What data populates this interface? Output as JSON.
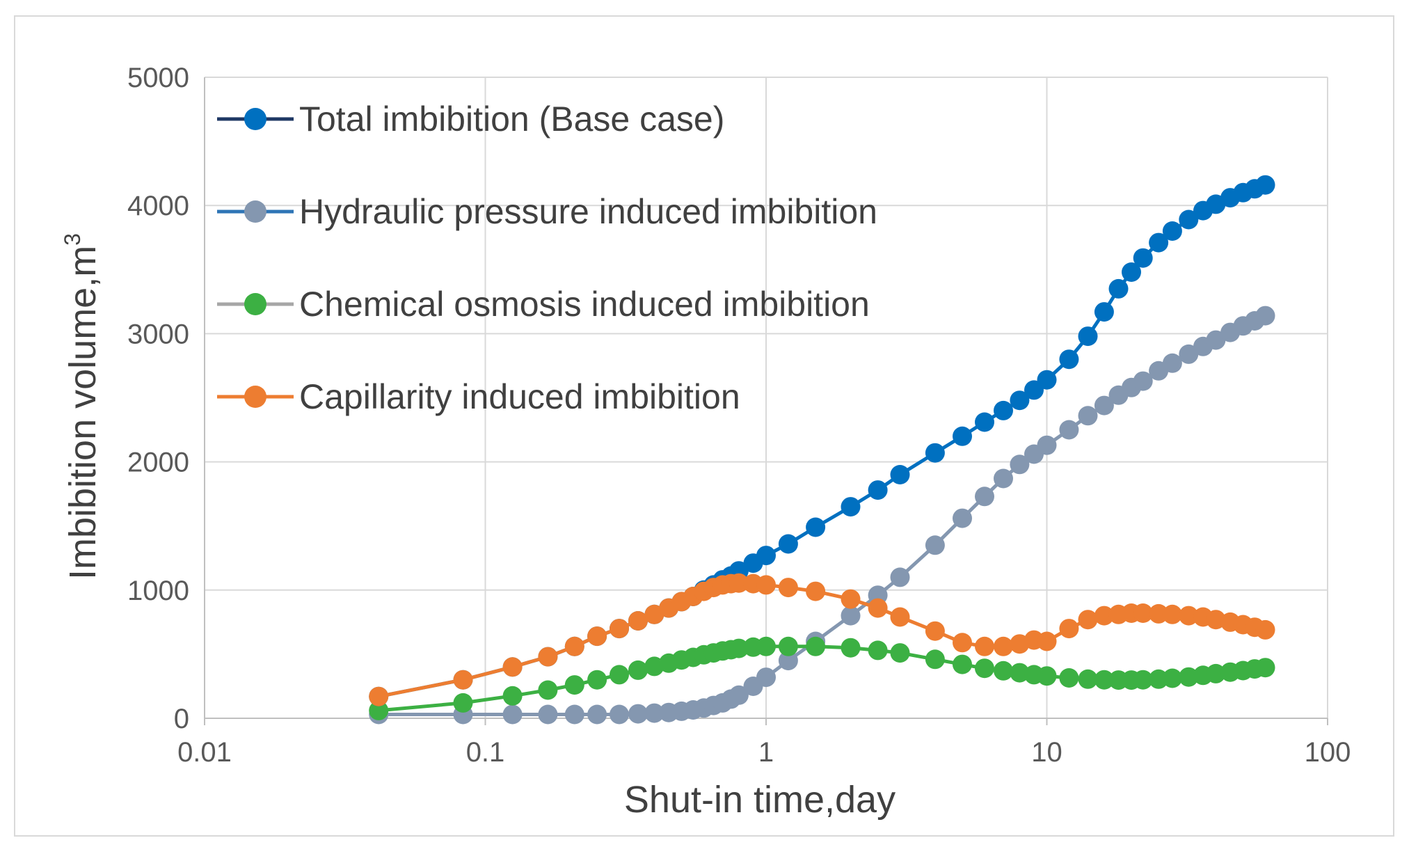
{
  "chart_data": {
    "type": "scatter",
    "title": "",
    "xlabel": "Shut-in time,day",
    "ylabel_main": "Imbibition volume,m",
    "ylabel_sup": "3",
    "xscale": "log",
    "xlim": [
      0.01,
      100
    ],
    "ylim": [
      0,
      5000
    ],
    "grid": true,
    "x_ticks": [
      0.01,
      0.1,
      1,
      10,
      100
    ],
    "x_tick_labels": [
      "0.01",
      "0.1",
      "1",
      "10",
      "100"
    ],
    "y_ticks": [
      0,
      1000,
      2000,
      3000,
      4000,
      5000
    ],
    "y_tick_labels": [
      "0",
      "1000",
      "2000",
      "3000",
      "4000",
      "5000"
    ],
    "legend_position": "top-left",
    "series": [
      {
        "name": "Total imbibition (Base case)",
        "color": "#0070c0",
        "line_color": "#1f3864",
        "x": [
          0.0417,
          0.0833,
          0.125,
          0.167,
          0.208,
          0.25,
          0.3,
          0.35,
          0.4,
          0.45,
          0.5,
          0.55,
          0.6,
          0.65,
          0.7,
          0.75,
          0.8,
          0.9,
          1,
          1.2,
          1.5,
          2,
          2.5,
          3,
          4,
          5,
          6,
          7,
          8,
          9,
          10,
          12,
          14,
          16,
          18,
          20,
          22,
          25,
          28,
          32,
          36,
          40,
          45,
          50,
          55,
          60
        ],
        "values": [
          170,
          300,
          400,
          480,
          560,
          640,
          700,
          760,
          810,
          860,
          910,
          950,
          1000,
          1040,
          1080,
          1110,
          1150,
          1210,
          1270,
          1360,
          1490,
          1650,
          1780,
          1900,
          2070,
          2200,
          2310,
          2400,
          2480,
          2560,
          2640,
          2800,
          2980,
          3170,
          3350,
          3480,
          3590,
          3710,
          3800,
          3890,
          3960,
          4010,
          4060,
          4100,
          4130,
          4160
        ]
      },
      {
        "name": "Hydraulic pressure induced imbibition",
        "color": "#8497b0",
        "line_color": "#2e75b6",
        "x": [
          0.0417,
          0.0833,
          0.125,
          0.167,
          0.208,
          0.25,
          0.3,
          0.35,
          0.4,
          0.45,
          0.5,
          0.55,
          0.6,
          0.65,
          0.7,
          0.75,
          0.8,
          0.9,
          1,
          1.2,
          1.5,
          2,
          2.5,
          3,
          4,
          5,
          6,
          7,
          8,
          9,
          10,
          12,
          14,
          16,
          18,
          20,
          22,
          25,
          28,
          32,
          36,
          40,
          45,
          50,
          55,
          60
        ],
        "values": [
          30,
          30,
          30,
          30,
          30,
          30,
          30,
          35,
          40,
          45,
          55,
          65,
          80,
          100,
          120,
          150,
          180,
          250,
          320,
          450,
          600,
          800,
          960,
          1100,
          1350,
          1560,
          1730,
          1870,
          1980,
          2060,
          2130,
          2250,
          2360,
          2440,
          2520,
          2580,
          2630,
          2710,
          2770,
          2840,
          2900,
          2950,
          3010,
          3060,
          3100,
          3140
        ]
      },
      {
        "name": "Chemical osmosis induced imbibition",
        "color": "#3cb043",
        "line_color": "#a6a6a6",
        "x": [
          0.0417,
          0.0833,
          0.125,
          0.167,
          0.208,
          0.25,
          0.3,
          0.35,
          0.4,
          0.45,
          0.5,
          0.55,
          0.6,
          0.65,
          0.7,
          0.75,
          0.8,
          0.9,
          1,
          1.2,
          1.5,
          2,
          2.5,
          3,
          4,
          5,
          6,
          7,
          8,
          9,
          10,
          12,
          14,
          16,
          18,
          20,
          22,
          25,
          28,
          32,
          36,
          40,
          45,
          50,
          55,
          60
        ],
        "values": [
          60,
          120,
          175,
          220,
          260,
          300,
          340,
          375,
          405,
          430,
          455,
          475,
          495,
          510,
          525,
          535,
          545,
          555,
          560,
          560,
          560,
          550,
          530,
          510,
          460,
          420,
          390,
          370,
          355,
          340,
          330,
          315,
          305,
          300,
          298,
          298,
          300,
          305,
          312,
          322,
          335,
          348,
          360,
          372,
          385,
          395
        ]
      },
      {
        "name": "Capillarity induced imbibition",
        "color": "#ed7d31",
        "line_color": "#ed7d31",
        "x": [
          0.0417,
          0.0833,
          0.125,
          0.167,
          0.208,
          0.25,
          0.3,
          0.35,
          0.4,
          0.45,
          0.5,
          0.55,
          0.6,
          0.65,
          0.7,
          0.75,
          0.8,
          0.9,
          1,
          1.2,
          1.5,
          2,
          2.5,
          3,
          4,
          5,
          6,
          7,
          8,
          9,
          10,
          12,
          14,
          16,
          18,
          20,
          22,
          25,
          28,
          32,
          36,
          40,
          45,
          50,
          55,
          60
        ],
        "values": [
          170,
          300,
          400,
          480,
          560,
          640,
          700,
          760,
          810,
          860,
          910,
          950,
          990,
          1020,
          1040,
          1050,
          1055,
          1050,
          1040,
          1020,
          990,
          930,
          860,
          790,
          680,
          590,
          560,
          560,
          580,
          610,
          600,
          700,
          770,
          800,
          810,
          820,
          820,
          815,
          810,
          800,
          790,
          770,
          750,
          730,
          710,
          690
        ]
      }
    ]
  }
}
